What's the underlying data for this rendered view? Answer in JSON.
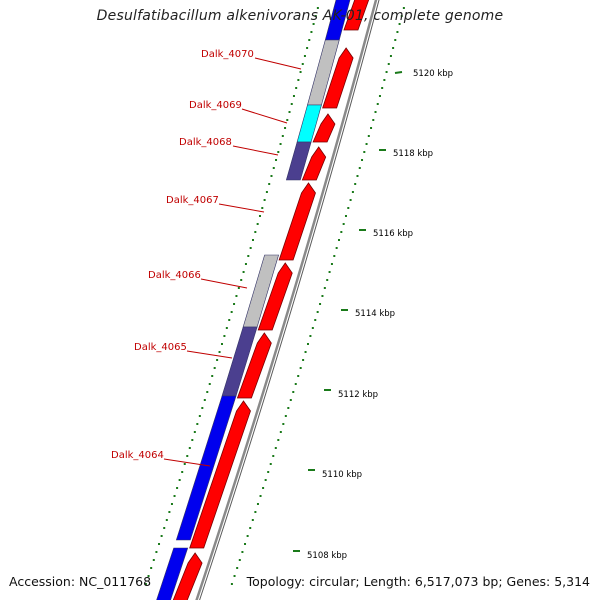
{
  "title": "Desulfatibacillum alkenivorans AK-01, complete genome",
  "accession": "Accession: NC_011768",
  "summary": "Topology: circular; Length: 6,517,073 bp; Genes: 5,314",
  "colors": {
    "forward_cds": "#ff0000",
    "reverse_blue": "#0000ee",
    "reverse_grey": "#c0c0c0",
    "reverse_cyan": "#00ffff",
    "reverse_navy": "#4b3f8f",
    "backbone": "#8a8a8a",
    "label": "#c00000",
    "tick": "#1a7a1a"
  },
  "gene_labels": [
    "Dalk_4070",
    "Dalk_4069",
    "Dalk_4068",
    "Dalk_4067",
    "Dalk_4066",
    "Dalk_4065",
    "Dalk_4064"
  ],
  "kbp_ticks": [
    "5120 kbp",
    "5118 kbp",
    "5116 kbp",
    "5114 kbp",
    "5112 kbp",
    "5110 kbp",
    "5108 kbp"
  ]
}
